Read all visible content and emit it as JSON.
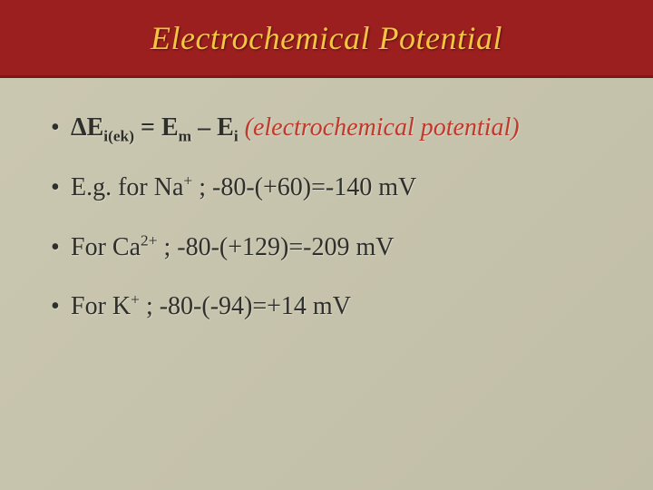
{
  "header": {
    "title": "Electrochemical Potential",
    "background_color": "#9c1f1f",
    "title_color": "#f5c542",
    "title_fontsize": 36
  },
  "slide": {
    "background_color": "#c6c3ac",
    "text_color": "#2f2f2b",
    "bullet_fontsize": 28
  },
  "bullets": [
    {
      "formula": {
        "delta": "Δ",
        "var1": "E",
        "sub1": "i(ek)",
        "eq": " = ",
        "var2": "E",
        "sub2": "m",
        "minus": " – ",
        "var3": "E",
        "sub3": "i"
      },
      "annotation": " (electrochemical potential)",
      "annotation_color": "#c0392b"
    },
    {
      "prefix": "E.g. for ",
      "ion": "Na",
      "charge": "+",
      "rest": " ; -80-(+60)=-140 mV"
    },
    {
      "prefix": "For ",
      "ion": "Ca",
      "charge": "2+",
      "rest": " ; -80-(+129)=-209 mV"
    },
    {
      "prefix": "For ",
      "ion": "K",
      "charge": "+",
      "rest": " ; -80-(-94)=+14 mV"
    }
  ]
}
